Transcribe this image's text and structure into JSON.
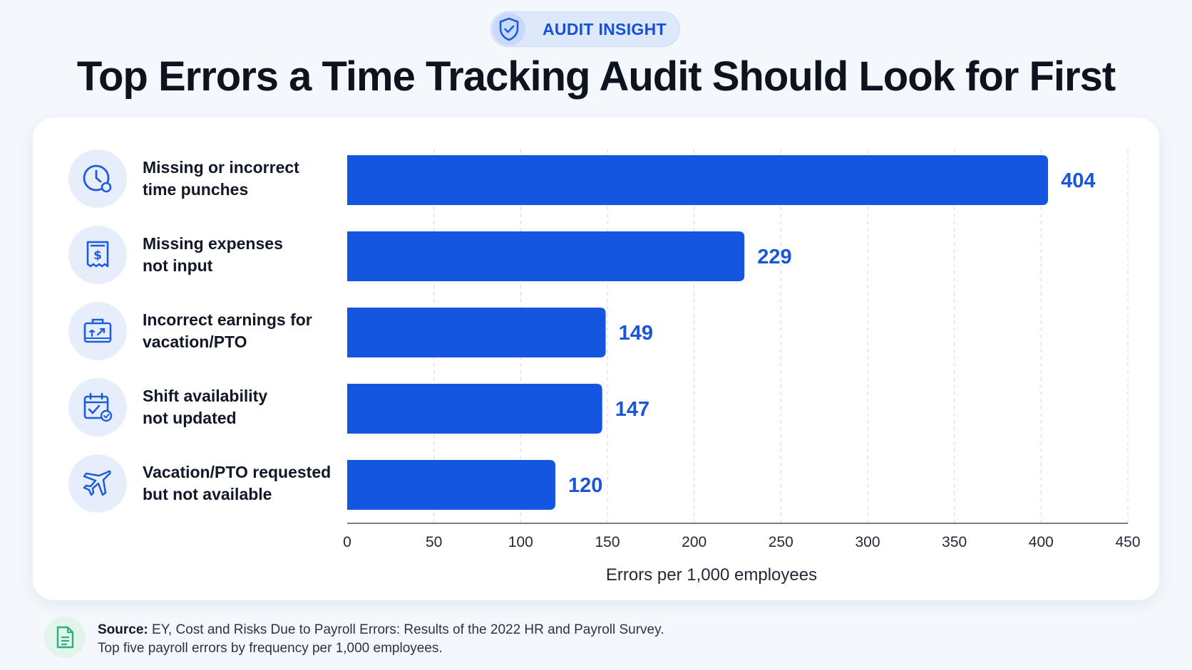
{
  "header": {
    "badge_label": "AUDIT INSIGHT",
    "badge_icon": "shield-check-icon",
    "title": "Top Errors a Time Tracking Audit Should Look for First"
  },
  "colors": {
    "bar": "#1556e0",
    "value_label": "#1a56d6",
    "icon": "#1d5be0",
    "badge_text": "#1550d8",
    "source_icon": "#2fb07a"
  },
  "rows": [
    {
      "line1": "Missing or incorrect",
      "line2": "time punches",
      "icon": "clock-icon"
    },
    {
      "line1": "Missing expenses",
      "line2": "not input",
      "icon": "receipt-dollar-icon"
    },
    {
      "line1": "Incorrect earnings for",
      "line2": "vacation/PTO",
      "icon": "travel-bag-icon"
    },
    {
      "line1": "Shift availability",
      "line2": "not updated",
      "icon": "calendar-check-icon"
    },
    {
      "line1": "Vacation/PTO requested",
      "line2": "but not available",
      "icon": "airplane-icon"
    }
  ],
  "chart_data": {
    "type": "bar",
    "orientation": "horizontal",
    "categories": [
      "Missing or incorrect time punches",
      "Missing expenses not input",
      "Incorrect earnings for vacation/PTO",
      "Shift availability not updated",
      "Vacation/PTO requested but not available"
    ],
    "values": [
      404,
      229,
      149,
      147,
      120
    ],
    "xlabel": "Errors per 1,000 employees",
    "xlim": [
      0,
      450
    ],
    "xticks": [
      0,
      50,
      100,
      150,
      200,
      250,
      300,
      350,
      400,
      450
    ],
    "grid": "vertical dashed",
    "data_labels": true
  },
  "source": {
    "label": "Source:",
    "text": "EY, Cost and Risks Due to Payroll Errors: Results of the 2022 HR and Payroll Survey.",
    "note": "Top five payroll errors by frequency per 1,000 employees.",
    "icon": "document-icon"
  }
}
